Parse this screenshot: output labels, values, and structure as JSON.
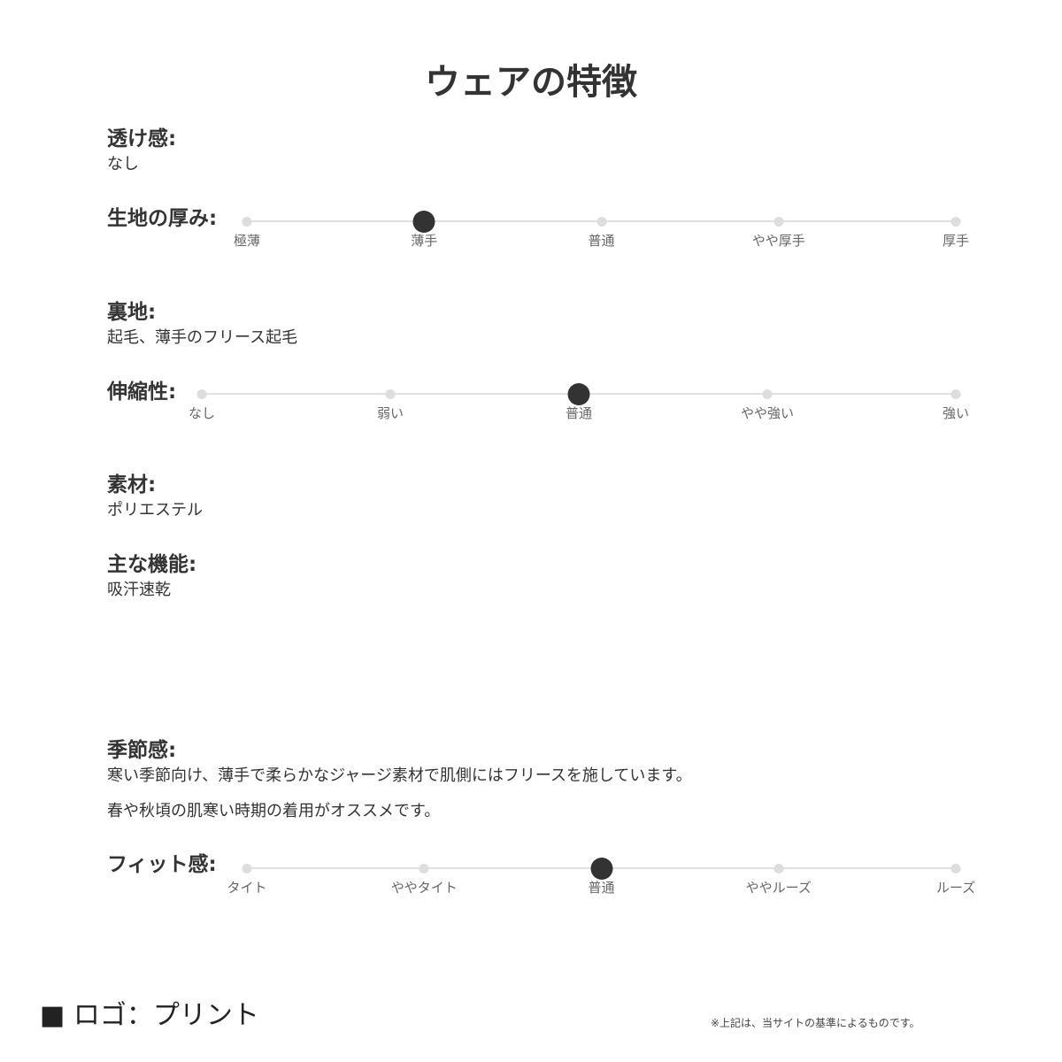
{
  "title": "ウェアの特徴",
  "sheerness": {
    "label": "透け感:",
    "value": "なし"
  },
  "thickness": {
    "label": "生地の厚み:",
    "options": [
      "極薄",
      "薄手",
      "普通",
      "やや厚手",
      "厚手"
    ],
    "selected_index": 1
  },
  "lining": {
    "label": "裏地:",
    "value": "起毛、薄手のフリース起毛"
  },
  "stretch": {
    "label": "伸縮性:",
    "options": [
      "なし",
      "弱い",
      "普通",
      "やや強い",
      "強い"
    ],
    "selected_index": 2
  },
  "material": {
    "label": "素材:",
    "value": "ポリエステル"
  },
  "function": {
    "label": "主な機能:",
    "value": "吸汗速乾"
  },
  "season": {
    "label": "季節感:",
    "lines": [
      "寒い季節向け、薄手で柔らかなジャージ素材で肌側にはフリースを施しています。",
      "春や秋頃の肌寒い時期の着用がオススメです。"
    ]
  },
  "fit": {
    "label": "フィット感:",
    "options": [
      "タイト",
      "ややタイト",
      "普通",
      "ややルーズ",
      "ルーズ"
    ],
    "selected_index": 2
  },
  "logo": "■ ロゴ：プリント",
  "note": "※上記は、当サイトの基準によるものです。",
  "colors": {
    "selected": "#333333",
    "unselected": "#dddddd",
    "track": "#e0e0e0"
  }
}
